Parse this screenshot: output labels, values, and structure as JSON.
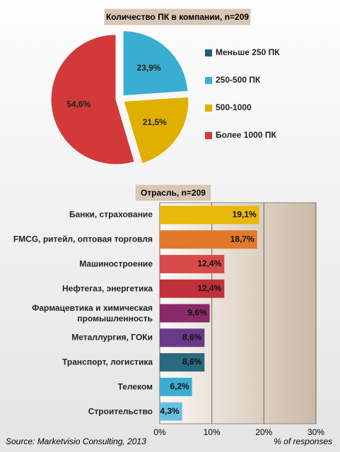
{
  "chart_data": [
    {
      "type": "pie",
      "title": "Количество ПК в компании, n=209",
      "categories": [
        "Меньше 250 ПК",
        "250-500 ПК",
        "500-1000",
        "Более 1000 ПК"
      ],
      "values": [
        0,
        23.9,
        21.5,
        54.6
      ],
      "value_labels": [
        null,
        "23,9%",
        "21,5%",
        "54,6%"
      ],
      "colors": [
        "#1f5f75",
        "#3aaed0",
        "#e0b000",
        "#d23a3a"
      ]
    },
    {
      "type": "bar",
      "orientation": "horizontal",
      "title": "Отрасль, n=209",
      "categories": [
        "Банки, страхование",
        "FMCG, ритейл, оптовая торговля",
        "Машиностроение",
        "Нефтегаз, энергетика",
        "Фармацевтика и химическая промышленность",
        "Металлургия, ГОКи",
        "Транспорт, логистика",
        "Телеком",
        "Строительство"
      ],
      "values": [
        19.1,
        18.7,
        12.4,
        12.4,
        9.6,
        8.6,
        8.6,
        6.2,
        4.3
      ],
      "value_labels": [
        "19,1%",
        "18,7%",
        "12,4%",
        "12,4%",
        "9,6%",
        "8,6%",
        "8,6%",
        "6,2%",
        "4,3%"
      ],
      "colors": [
        "#e8b90a",
        "#e07a2a",
        "#d84a4a",
        "#c0303a",
        "#8a2a6a",
        "#6a3a8a",
        "#2a6a80",
        "#3aaed0",
        "#6ac0e0"
      ],
      "xlim": [
        0,
        30
      ],
      "xticks": [
        {
          "value": 0,
          "label": "0%"
        },
        {
          "value": 10,
          "label": "10%"
        },
        {
          "value": 20,
          "label": "20%"
        },
        {
          "value": 30,
          "label": "30%"
        }
      ],
      "xlabel": "% of responses",
      "grid": true
    }
  ],
  "source": "Source: Marketvisio Consulting, 2013"
}
